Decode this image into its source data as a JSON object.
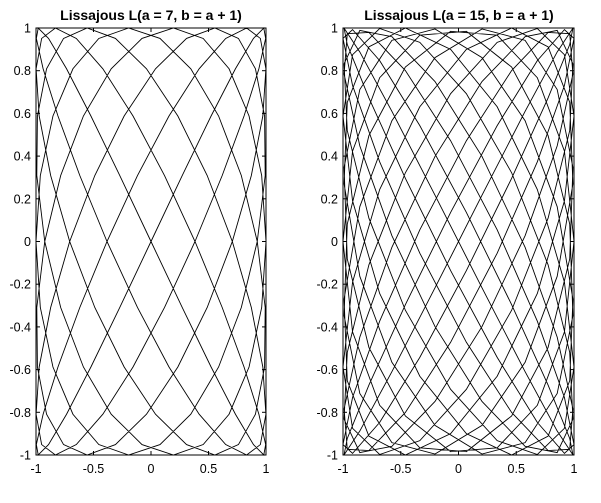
{
  "chart_data": [
    {
      "type": "line",
      "title": "Lissajous L(a = 7, b = a + 1)",
      "a": 7,
      "b": 8,
      "xlim": [
        -1,
        1
      ],
      "ylim": [
        -1,
        1
      ],
      "xticks": [
        "-1",
        "-0.5",
        "0",
        "0.5",
        "1"
      ],
      "xtick_values": [
        -1,
        -0.5,
        0,
        0.5,
        1
      ],
      "yticks": [
        "1",
        "0.8",
        "0.6",
        "0.4",
        "0.2",
        "0",
        "-0.2",
        "-0.4",
        "-0.6",
        "-0.8",
        "-1"
      ],
      "ytick_values": [
        1,
        0.8,
        0.6,
        0.4,
        0.2,
        0,
        -0.2,
        -0.4,
        -0.6,
        -0.8,
        -1
      ],
      "grid": false,
      "line_color": "#000000"
    },
    {
      "type": "line",
      "title": "Lissajous L(a = 15, b = a + 1)",
      "a": 15,
      "b": 16,
      "xlim": [
        -1,
        1
      ],
      "ylim": [
        -1,
        1
      ],
      "xticks": [
        "-1",
        "-0.5",
        "0",
        "0.5",
        "1"
      ],
      "xtick_values": [
        -1,
        -0.5,
        0,
        0.5,
        1
      ],
      "yticks": [
        "1",
        "0.8",
        "0.6",
        "0.4",
        "0.2",
        "0",
        "-0.2",
        "-0.4",
        "-0.6",
        "-0.8",
        "-1"
      ],
      "ytick_values": [
        1,
        0.8,
        0.6,
        0.4,
        0.2,
        0,
        -0.2,
        -0.4,
        -0.6,
        -0.8,
        -1
      ],
      "grid": false,
      "line_color": "#000000"
    }
  ]
}
